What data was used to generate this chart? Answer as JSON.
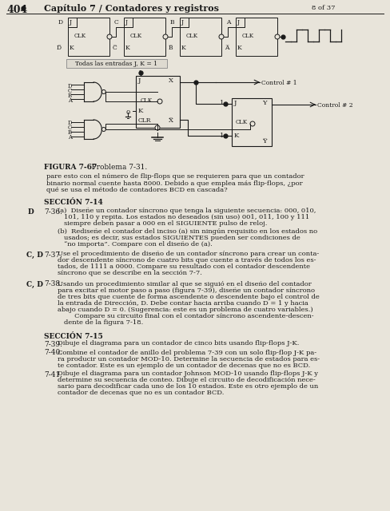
{
  "page_number": "404",
  "chapter_title": "Capítulo 7 / Contadores y registros",
  "page_of": "8 of 37",
  "background_color": "#e8e4da",
  "text_color": "#1a1a1a",
  "caption_bold": "FIGURA 7-67",
  "caption_rest": "    Problema 7-31.",
  "all_inputs_label": "Todas las entradas J, K = 1",
  "preceding_text_lines": [
    "pare esto con el número de flip-flops que se requieren para que un contador",
    "binario normal cuente hasta 8000. Debido a que emplea más flip-flops, ¿por",
    "qué se usa el método de contadores BCD en cascada?"
  ],
  "sec14_heading": "SECCIÓN 7-14",
  "prob_736_label": "D",
  "prob_736_num": "7-36.",
  "prob_736a_lines": [
    "(a)  Diseñe un contador síncrono que tenga la siguiente secuencia: 000, 010,",
    "101, 110 y repita. Los estados no deseados (sin uso) 001, 011, 100 y 111",
    "siempre deben pasar a 000 en el SIGUIENTE pulso de reloj."
  ],
  "prob_736b_lines": [
    "(b)  Rediseñe el contador del inciso (a) sin ningún requisito en los estados no",
    "usados; es decir, sus estados SIGUIENTES pueden ser condiciones de",
    "“no importa”. Compare con el diseño de (a)."
  ],
  "prob_737_label": "C, D",
  "prob_737_num": "7-37.",
  "prob_737_lines": [
    "Use el procedimiento de diseño de un contador síncrono para crear un conta-",
    "dor descendente síncrono de cuatro bits que cuente a través de todos los es-",
    "tados, de 1111 a 0000. Compare su resultado con el contador descendente",
    "síncrono que se describe en la sección 7-7."
  ],
  "prob_738_label": "C, D",
  "prob_738_num": "7-38.",
  "prob_738_lines": [
    "Usando un procedimiento similar al que se siguió en el diseño del contador",
    "para excitar el motor paso a paso (figura 7-39), diseñe un contador síncrono",
    "de tres bits que cuente de forma ascendente o descendente bajo el control de",
    "la entrada de Dirección, D. Debe contar hacia arriba cuando D = 1 y hacia",
    "abajo cuando D = 0. (Sugerencia: este es un problema de cuatro variables.)",
    "     Compare su circuito final con el contador síncrono ascendente-descen-",
    "dente de la figura 7-18."
  ],
  "sec15_heading": "SECCIÓN 7-15",
  "prob_739_num": "7-39.",
  "prob_739_lines": [
    "Dibuje el diagrama para un contador de cinco bits usando flip-flops J-K."
  ],
  "prob_740_num": "7-40.",
  "prob_740_lines": [
    "Combine el contador de anillo del problema 7-39 con un solo flip-flop J-K pa-",
    "ra producir un contador MOD-10. Determine la secuencia de estados para es-",
    "te contador. Este es un ejemplo de un contador de decenas que no es BCD."
  ],
  "prob_741_num": "7-41.",
  "prob_741_lines": [
    "Dibuje el diagrama para un contador Johnson MOD-10 usando flip-flops J-K y",
    "determine su secuencia de conteo. Dibuje el circuito de decodificación nece-",
    "sario para decodificar cada uno de los 10 estados. Este es otro ejemplo de un",
    "contador de decenas que no es un contador BCD."
  ]
}
